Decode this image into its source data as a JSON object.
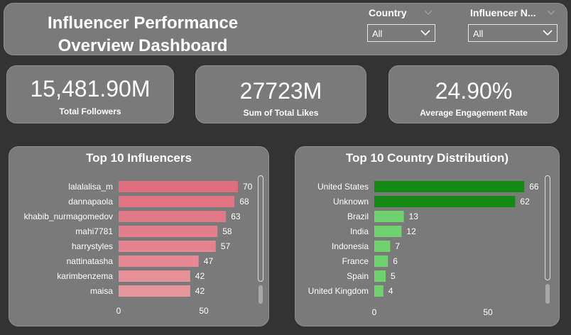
{
  "header": {
    "title_line1": "Influencer Performance",
    "title_line2": "Overview Dashboard"
  },
  "slicers": [
    {
      "label": "Country",
      "value": "All"
    },
    {
      "label": "Influencer N...",
      "value": "All"
    }
  ],
  "kpis": [
    {
      "value": "15,481.90M",
      "label": "Total Followers"
    },
    {
      "value": "27723M",
      "label": "Sum of Total Likes"
    },
    {
      "value": "24.90%",
      "label": "Average Engagement Rate"
    }
  ],
  "chart_data": [
    {
      "type": "bar",
      "orientation": "horizontal",
      "title": "Top 10 Influencers",
      "categories": [
        "lalalalisa_m",
        "dannapaola",
        "khabib_nurmagomedov",
        "mahi7781",
        "harrystyles",
        "nattinatasha",
        "karimbenzema",
        "maisa"
      ],
      "values": [
        70,
        68,
        63,
        58,
        57,
        47,
        42,
        42
      ],
      "xticks": [
        "0",
        "50"
      ],
      "xlim": [
        0,
        70
      ],
      "colors": [
        "#df6f7e",
        "#e07482",
        "#e17886",
        "#e37f8b",
        "#e4838f",
        "#e58a94",
        "#e69097",
        "#e7969c"
      ]
    },
    {
      "type": "bar",
      "orientation": "horizontal",
      "title": "Top 10 Country Distribution)",
      "categories": [
        "United States",
        "Unknown",
        "Brazil",
        "India",
        "Indonesia",
        "France",
        "Spain",
        "United Kingdom"
      ],
      "values": [
        66,
        62,
        13,
        12,
        7,
        6,
        5,
        4
      ],
      "xticks": [
        "0",
        "50"
      ],
      "xlim": [
        0,
        66
      ],
      "colors": [
        "#138a13",
        "#138a13",
        "#6fd26f",
        "#6fd26f",
        "#6fd26f",
        "#6fd26f",
        "#6fd26f",
        "#6fd26f"
      ]
    }
  ]
}
